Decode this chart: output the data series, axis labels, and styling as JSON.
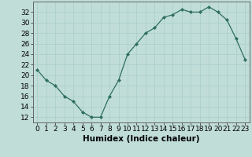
{
  "x": [
    0,
    1,
    2,
    3,
    4,
    5,
    6,
    7,
    8,
    9,
    10,
    11,
    12,
    13,
    14,
    15,
    16,
    17,
    18,
    19,
    20,
    21,
    22,
    23
  ],
  "y": [
    21,
    19,
    18,
    16,
    15,
    13,
    12,
    12,
    16,
    19,
    24,
    26,
    28,
    29,
    31,
    31.5,
    32.5,
    32,
    32,
    33,
    32,
    30.5,
    27,
    23
  ],
  "line_color": "#2E6E5E",
  "marker_color": "#2E6E5E",
  "bg_color": "#C0DDD8",
  "grid_color": "#A8CECA",
  "xlabel": "Humidex (Indice chaleur)",
  "xlim": [
    -0.5,
    23.5
  ],
  "ylim": [
    11,
    34
  ],
  "yticks": [
    12,
    14,
    16,
    18,
    20,
    22,
    24,
    26,
    28,
    30,
    32
  ],
  "xticks": [
    0,
    1,
    2,
    3,
    4,
    5,
    6,
    7,
    8,
    9,
    10,
    11,
    12,
    13,
    14,
    15,
    16,
    17,
    18,
    19,
    20,
    21,
    22,
    23
  ],
  "xtick_labels": [
    "0",
    "1",
    "2",
    "3",
    "4",
    "5",
    "6",
    "7",
    "8",
    "9",
    "10",
    "11",
    "12",
    "13",
    "14",
    "15",
    "16",
    "17",
    "18",
    "19",
    "20",
    "21",
    "22",
    "23"
  ],
  "xlabel_fontsize": 7.5,
  "tick_fontsize": 6.5
}
